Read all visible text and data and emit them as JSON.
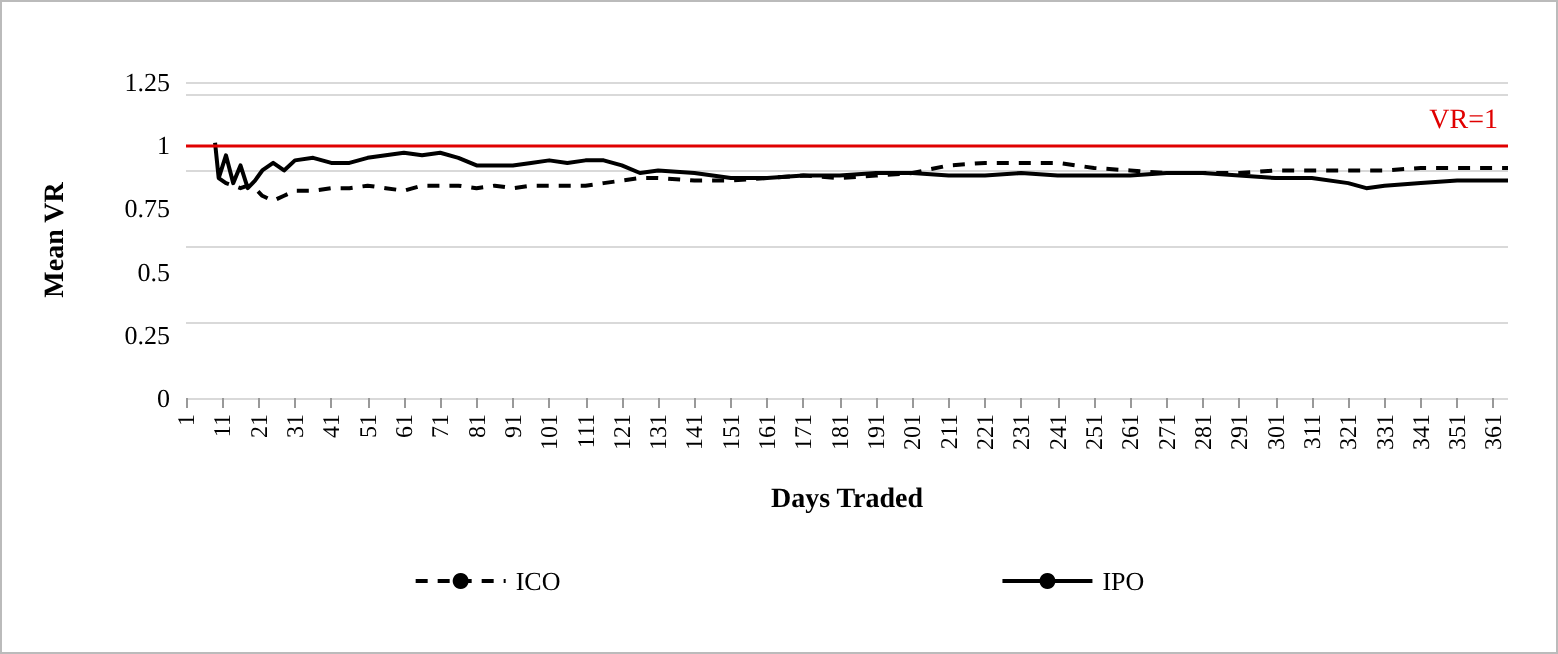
{
  "chart_data": {
    "type": "line",
    "xlabel": "Days Traded",
    "ylabel": "Mean VR",
    "x": [
      9,
      10,
      12,
      14,
      16,
      18,
      20,
      22,
      25,
      28,
      31,
      36,
      41,
      46,
      51,
      56,
      61,
      66,
      71,
      76,
      81,
      86,
      91,
      96,
      101,
      106,
      111,
      116,
      121,
      126,
      131,
      141,
      151,
      161,
      171,
      181,
      191,
      201,
      211,
      221,
      231,
      241,
      251,
      261,
      271,
      281,
      291,
      301,
      311,
      321,
      326,
      331,
      341,
      351,
      365
    ],
    "series": [
      {
        "name": "ICO",
        "color": "#000000",
        "line_style": "dashed",
        "values": [
          null,
          0.87,
          0.85,
          0.84,
          0.83,
          0.84,
          0.83,
          0.8,
          0.78,
          0.8,
          0.82,
          0.82,
          0.83,
          0.83,
          0.84,
          0.83,
          0.82,
          0.84,
          0.84,
          0.84,
          0.83,
          0.84,
          0.83,
          0.84,
          0.84,
          0.84,
          0.84,
          0.85,
          0.86,
          0.87,
          0.87,
          0.86,
          0.86,
          0.87,
          0.88,
          0.87,
          0.88,
          0.89,
          0.92,
          0.93,
          0.93,
          0.93,
          0.91,
          0.9,
          0.89,
          0.89,
          0.89,
          0.9,
          0.9,
          0.9,
          0.9,
          0.9,
          0.91,
          0.91,
          0.91
        ]
      },
      {
        "name": "IPO",
        "color": "#000000",
        "line_style": "solid",
        "values": [
          1.01,
          0.87,
          0.96,
          0.85,
          0.92,
          0.83,
          0.86,
          0.9,
          0.93,
          0.9,
          0.94,
          0.95,
          0.93,
          0.93,
          0.95,
          0.96,
          0.97,
          0.96,
          0.97,
          0.95,
          0.92,
          0.92,
          0.92,
          0.93,
          0.94,
          0.93,
          0.94,
          0.94,
          0.92,
          0.89,
          0.9,
          0.89,
          0.87,
          0.87,
          0.88,
          0.88,
          0.89,
          0.89,
          0.88,
          0.88,
          0.89,
          0.88,
          0.88,
          0.88,
          0.89,
          0.89,
          0.88,
          0.87,
          0.87,
          0.85,
          0.83,
          0.84,
          0.85,
          0.86,
          0.86
        ]
      }
    ],
    "xlim": [
      1,
      365
    ],
    "xticks": [
      1,
      11,
      21,
      31,
      41,
      51,
      61,
      71,
      81,
      91,
      101,
      111,
      121,
      131,
      141,
      151,
      161,
      171,
      181,
      191,
      201,
      211,
      221,
      231,
      241,
      251,
      261,
      271,
      281,
      291,
      301,
      311,
      321,
      331,
      341,
      351,
      361
    ],
    "ylim": [
      0,
      1.25
    ],
    "yticks": [
      0,
      0.25,
      0.5,
      0.75,
      1,
      1.25
    ],
    "ref_lines": [
      {
        "axis": "y",
        "value": 1,
        "label": "VR=1",
        "color": "#e00000"
      }
    ],
    "grid": "y",
    "legend": "bottom"
  }
}
